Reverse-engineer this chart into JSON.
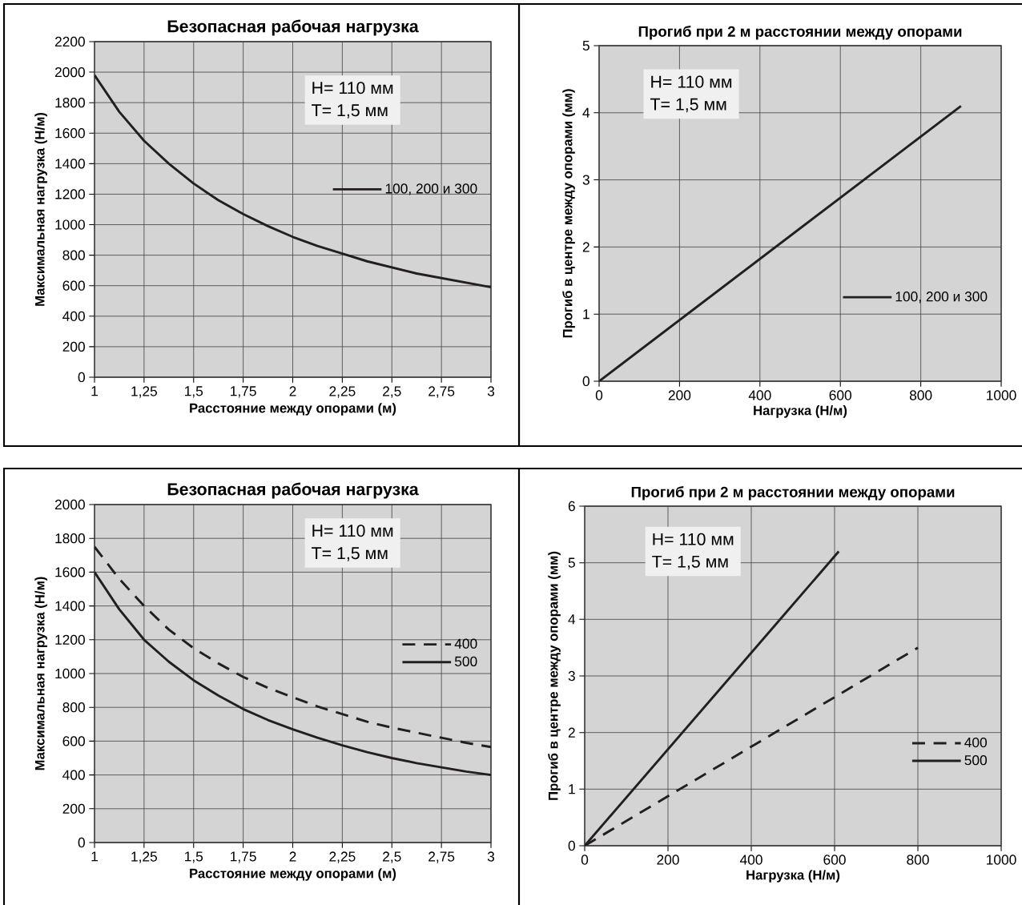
{
  "chart_data": [
    {
      "type": "line",
      "title": "Безопасная рабочая нагрузка",
      "xlabel": "Расстояние между опорами (м)",
      "ylabel": "Максимальная нагрузка (Н/м)",
      "xlim": [
        1,
        3
      ],
      "ylim": [
        0,
        2200
      ],
      "xticks": [
        1,
        {
          "value": 1.25,
          "label": "1,25"
        },
        {
          "value": 1.5,
          "label": "1,5"
        },
        {
          "value": 1.75,
          "label": "1,75"
        },
        2,
        {
          "value": 2.25,
          "label": "2,25"
        },
        {
          "value": 2.5,
          "label": "2,5"
        },
        {
          "value": 2.75,
          "label": "2,75"
        },
        3
      ],
      "yticks": [
        0,
        200,
        400,
        600,
        800,
        1000,
        1200,
        1400,
        1600,
        1800,
        2000,
        2200
      ],
      "grid": true,
      "legend": "right",
      "annotations": [
        "H= 110 мм",
        "T= 1,5 мм"
      ],
      "series": [
        {
          "name": "100, 200 и 300",
          "color": "#231f20",
          "line_style": "solid",
          "x": [
            1,
            1.125,
            1.25,
            1.375,
            1.5,
            1.625,
            1.75,
            1.875,
            2,
            2.125,
            2.25,
            2.375,
            2.5,
            2.625,
            2.75,
            2.875,
            3
          ],
          "values": [
            1980,
            1740,
            1550,
            1400,
            1270,
            1160,
            1070,
            990,
            920,
            860,
            810,
            760,
            720,
            680,
            650,
            620,
            590
          ]
        }
      ]
    },
    {
      "type": "line",
      "title": "Прогиб при 2 м расстоянии между опорами",
      "xlabel": "Нагрузка (Н/м)",
      "ylabel": "Прогиб в центре между опорами (мм)",
      "xlim": [
        0,
        1000
      ],
      "ylim": [
        0,
        5
      ],
      "xticks": [
        0,
        200,
        400,
        600,
        800,
        1000
      ],
      "yticks": [
        0,
        1,
        2,
        3,
        4,
        5
      ],
      "grid": true,
      "legend": "bottom right",
      "annotations": [
        "H= 110 мм",
        "T= 1,5 мм"
      ],
      "series": [
        {
          "name": "100, 200 и 300",
          "color": "#231f20",
          "line_style": "solid",
          "x": [
            0,
            900
          ],
          "values": [
            0,
            4.1
          ]
        }
      ]
    },
    {
      "type": "line",
      "title": "Безопасная рабочая нагрузка",
      "xlabel": "Расстояние между опорами (м)",
      "ylabel": "Максимальная нагрузка (Н/м)",
      "xlim": [
        1,
        3
      ],
      "ylim": [
        0,
        2000
      ],
      "xticks": [
        1,
        {
          "value": 1.25,
          "label": "1,25"
        },
        {
          "value": 1.5,
          "label": "1,5"
        },
        {
          "value": 1.75,
          "label": "1,75"
        },
        2,
        {
          "value": 2.25,
          "label": "2,25"
        },
        {
          "value": 2.5,
          "label": "2,5"
        },
        {
          "value": 2.75,
          "label": "2,75"
        },
        3
      ],
      "yticks": [
        0,
        200,
        400,
        600,
        800,
        1000,
        1200,
        1400,
        1600,
        1800,
        2000
      ],
      "grid": true,
      "legend": "right",
      "annotations": [
        "H= 110 мм",
        "T= 1,5 мм"
      ],
      "series": [
        {
          "name": "400",
          "color": "#231f20",
          "line_style": "dashed",
          "x": [
            1,
            1.125,
            1.25,
            1.375,
            1.5,
            1.625,
            1.75,
            1.875,
            2,
            2.125,
            2.25,
            2.375,
            2.5,
            2.625,
            2.75,
            2.875,
            3
          ],
          "values": [
            1750,
            1560,
            1400,
            1260,
            1150,
            1060,
            980,
            915,
            860,
            805,
            760,
            715,
            680,
            650,
            620,
            590,
            565
          ]
        },
        {
          "name": "500",
          "color": "#231f20",
          "line_style": "solid",
          "x": [
            1,
            1.125,
            1.25,
            1.375,
            1.5,
            1.625,
            1.75,
            1.875,
            2,
            2.125,
            2.25,
            2.375,
            2.5,
            2.625,
            2.75,
            2.875,
            3
          ],
          "values": [
            1600,
            1380,
            1200,
            1070,
            960,
            870,
            790,
            725,
            670,
            620,
            575,
            535,
            500,
            470,
            445,
            420,
            400
          ]
        }
      ]
    },
    {
      "type": "line",
      "title": "Прогиб при 2 м расстоянии между опорами",
      "xlabel": "Нагрузка (Н/м)",
      "ylabel": "Прогиб в центре между опорами (мм)",
      "xlim": [
        0,
        1000
      ],
      "ylim": [
        0,
        6
      ],
      "xticks": [
        0,
        200,
        400,
        600,
        800,
        1000
      ],
      "yticks": [
        0,
        1,
        2,
        3,
        4,
        5,
        6
      ],
      "grid": true,
      "legend": "bottom right",
      "annotations": [
        "H= 110 мм",
        "T= 1,5 мм"
      ],
      "series": [
        {
          "name": "400",
          "color": "#231f20",
          "line_style": "dashed",
          "x": [
            0,
            800
          ],
          "values": [
            0,
            3.5
          ]
        },
        {
          "name": "500",
          "color": "#231f20",
          "line_style": "solid",
          "x": [
            0,
            610
          ],
          "values": [
            0,
            5.2
          ]
        }
      ]
    }
  ]
}
